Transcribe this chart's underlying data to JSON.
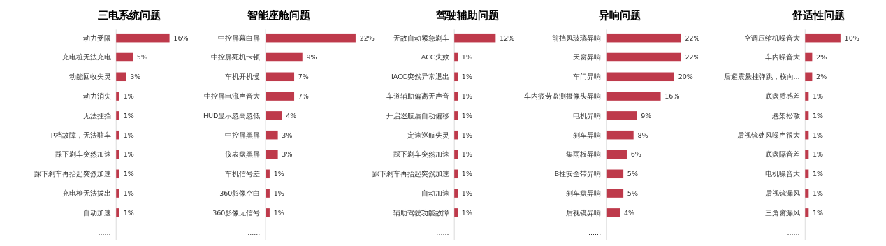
{
  "chart_data": [
    {
      "type": "bar",
      "orientation": "horizontal",
      "title": "三电系统问题",
      "categories": [
        "动力受限",
        "充电桩无法充电",
        "动能回收失灵",
        "动力消失",
        "无法挂挡",
        "P档故障，无法驻车",
        "踩下刹车突然加速",
        "踩下刹车再抬起突然加速",
        "充电枪无法拔出",
        "自动加速",
        "......"
      ],
      "values": [
        16,
        5,
        3,
        1,
        1,
        1,
        1,
        1,
        1,
        1,
        null
      ],
      "value_labels": [
        "16%",
        "5%",
        "3%",
        "1%",
        "1%",
        "1%",
        "1%",
        "1%",
        "1%",
        "1%",
        null
      ],
      "color": "#be3a4b",
      "tick_labels": "y"
    },
    {
      "type": "bar",
      "orientation": "horizontal",
      "title": "智能座舱问题",
      "categories": [
        "中控屏幕白屏",
        "中控屏死机卡顿",
        "车机开机慢",
        "中控屏电流声音大",
        "HUD显示忽高忽低",
        "中控屏黑屏",
        "仪表盘黑屏",
        "车机信号差",
        "360影像空白",
        "360影像无信号",
        "......"
      ],
      "values": [
        22,
        9,
        7,
        7,
        4,
        3,
        3,
        1,
        1,
        1,
        null
      ],
      "value_labels": [
        "22%",
        "9%",
        "7%",
        "7%",
        "4%",
        "3%",
        "3%",
        "1%",
        "1%",
        "1%",
        null
      ],
      "color": "#be3a4b",
      "tick_labels": "y"
    },
    {
      "type": "bar",
      "orientation": "horizontal",
      "title": "驾驶辅助问题",
      "categories": [
        "无故自动紧急刹车",
        "ACC失效",
        "IACC突然异常退出",
        "车道辅助偏离无声音",
        "开启巡航后自动偏移",
        "定速巡航失灵",
        "踩下刹车突然加速",
        "踩下刹车再抬起突然加速",
        "自动加速",
        "辅助驾驶功能故障",
        "......"
      ],
      "values": [
        12,
        1,
        1,
        1,
        1,
        1,
        1,
        1,
        1,
        1,
        null
      ],
      "value_labels": [
        "12%",
        "1%",
        "1%",
        "1%",
        "1%",
        "1%",
        "1%",
        "1%",
        "1%",
        "1%",
        null
      ],
      "color": "#be3a4b",
      "tick_labels": "y"
    },
    {
      "type": "bar",
      "orientation": "horizontal",
      "title": "异响问题",
      "categories": [
        "前挡风玻璃异响",
        "天窗异响",
        "车门异响",
        "车内疲劳监测摄像头异响",
        "电机异响",
        "刹车异响",
        "集雨板异响",
        "B柱安全带异响",
        "刹车盘异响",
        "后视镜异响",
        "......"
      ],
      "values": [
        22,
        22,
        20,
        16,
        9,
        8,
        6,
        5,
        5,
        4,
        null
      ],
      "value_labels": [
        "22%",
        "22%",
        "20%",
        "16%",
        "9%",
        "8%",
        "6%",
        "5%",
        "5%",
        "4%",
        null
      ],
      "color": "#be3a4b",
      "tick_labels": "y"
    },
    {
      "type": "bar",
      "orientation": "horizontal",
      "title": "舒适性问题",
      "categories": [
        "空调压缩机噪音大",
        "车内噪音大",
        "后避震悬挂弹跳，横向...",
        "底盘质感差",
        "悬架松散",
        "后视镜处风噪声很大",
        "底盘隔音差",
        "电机噪音大",
        "后视镜漏风",
        "三角窗漏风",
        "......"
      ],
      "values": [
        10,
        2,
        2,
        1,
        1,
        1,
        1,
        1,
        1,
        1,
        null
      ],
      "value_labels": [
        "10%",
        "2%",
        "2%",
        "1%",
        "1%",
        "1%",
        "1%",
        "1%",
        "1%",
        "1%",
        null
      ],
      "color": "#be3a4b",
      "tick_labels": "y"
    }
  ]
}
